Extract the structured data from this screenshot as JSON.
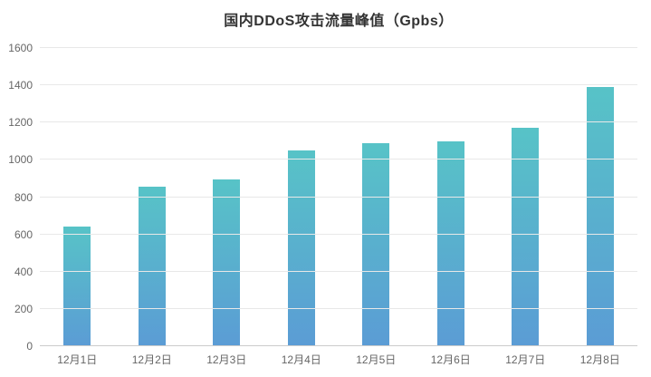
{
  "page": {
    "background": "#ffffff"
  },
  "chart_data": {
    "type": "bar",
    "title": "国内DDoS攻击流量峰值（Gpbs）",
    "xlabel": "",
    "ylabel": "",
    "categories": [
      "12月1日",
      "12月2日",
      "12月3日",
      "12月4日",
      "12月5日",
      "12月6日",
      "12月7日",
      "12月8日"
    ],
    "values": [
      640,
      855,
      895,
      1050,
      1090,
      1100,
      1170,
      1390
    ],
    "ylim": [
      0,
      1600
    ],
    "y_ticks": [
      0,
      200,
      400,
      600,
      800,
      1000,
      1200,
      1400,
      1600
    ],
    "grid": true,
    "legend_position": "none",
    "colors": {
      "bar_gradient_top": "#57c3c7",
      "bar_gradient_bottom": "#5b9cd5",
      "gridline": "#e8e8e8",
      "axis_line": "#cccccc",
      "tick_label": "#666666",
      "title": "#333333"
    }
  }
}
